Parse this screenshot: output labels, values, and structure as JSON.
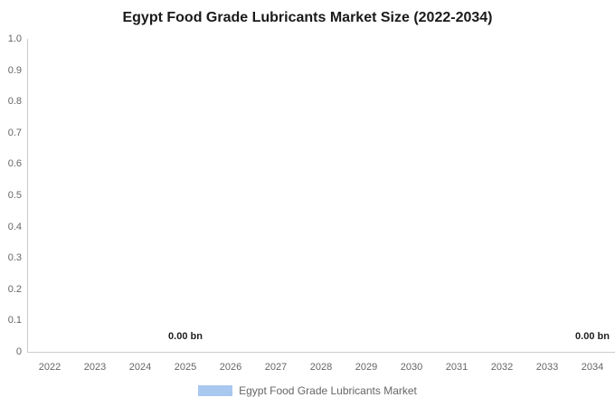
{
  "title": "Egypt Food Grade Lubricants Market Size (2022-2034)",
  "chart_data": {
    "type": "bar",
    "title": "Egypt Food Grade Lubricants Market Size (2022-2034)",
    "categories": [
      "2022",
      "2023",
      "2024",
      "2025",
      "2026",
      "2027",
      "2028",
      "2029",
      "2030",
      "2031",
      "2032",
      "2033",
      "2034"
    ],
    "series": [
      {
        "name": "Egypt Food Grade Lubricants Market",
        "values": [
          0,
          0,
          0,
          0,
          0,
          0,
          0,
          0,
          0,
          0,
          0,
          0,
          0
        ],
        "color": "#a9c8f0",
        "unit": "bn"
      }
    ],
    "visible_data_labels": [
      {
        "category": "2025",
        "text": "0.00 bn"
      },
      {
        "category": "2034",
        "text": "0.00 bn"
      }
    ],
    "xlabel": "",
    "ylabel": "",
    "ylim": [
      0,
      1.0
    ],
    "y_tick_labels": [
      "1.0",
      "0.9",
      "0.8",
      "0.7",
      "0.6",
      "0.5",
      "0.4",
      "0.3",
      "0.2",
      "0.1",
      "0"
    ],
    "grid": false,
    "legend_position": "bottom"
  },
  "legend": {
    "label": "Egypt Food Grade Lubricants Market",
    "swatch_color": "#a9c8f0"
  },
  "colors": {
    "axis_line": "#cccccc",
    "tick_label": "#666666",
    "title": "#1a1a1a",
    "data_label": "#1f1f1f",
    "series": "#a9c8f0",
    "background": "#ffffff"
  }
}
